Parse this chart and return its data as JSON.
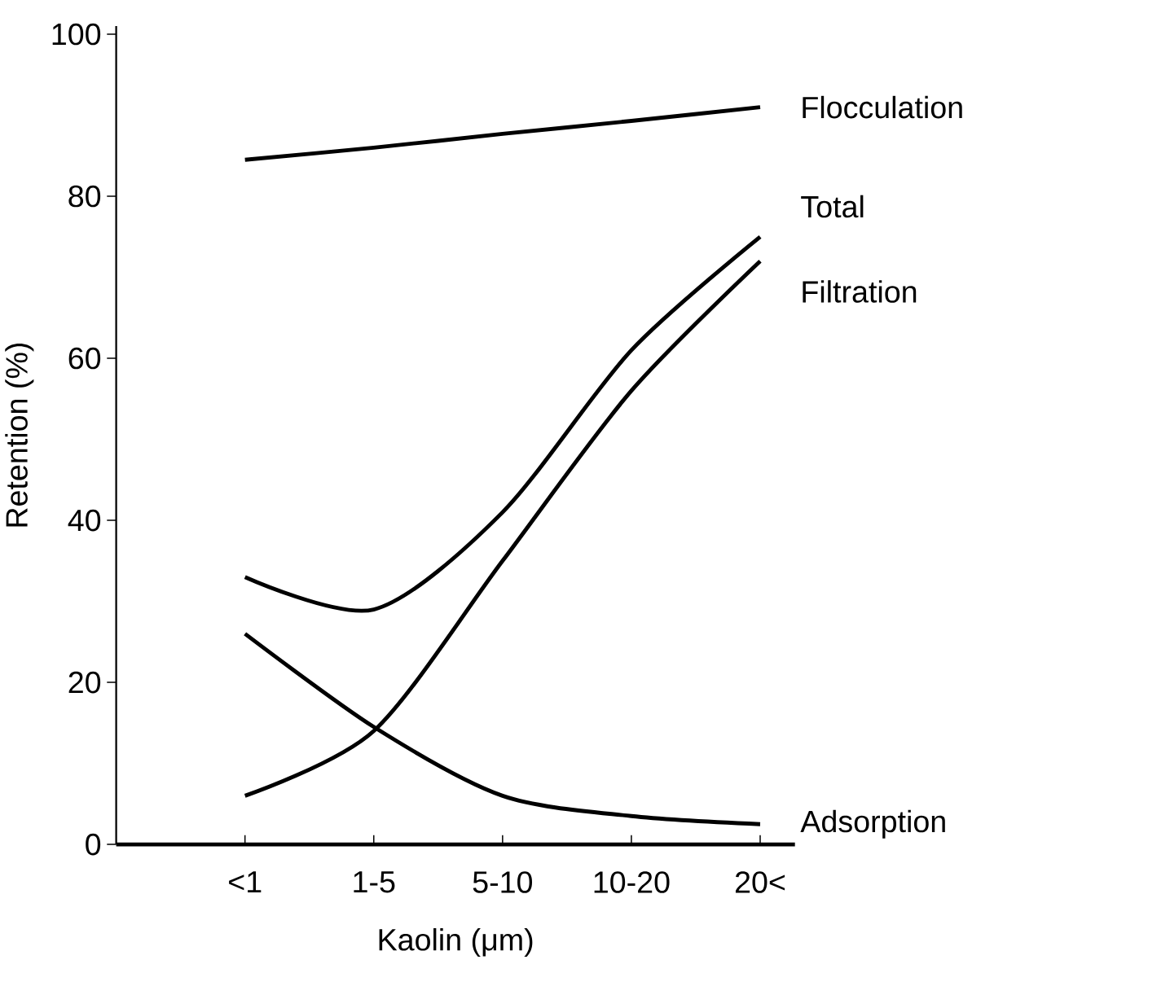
{
  "chart_data": {
    "type": "line",
    "xlabel": "Kaolin (μm)",
    "ylabel": "Retention (%)",
    "categories": [
      "<1",
      "1-5",
      "5-10",
      "10-20",
      "20<"
    ],
    "ylim": [
      0,
      101
    ],
    "yticks": [
      0,
      20,
      40,
      60,
      80,
      100
    ],
    "grid": false,
    "legend": false,
    "marker": "none",
    "line_style": "solid",
    "series": [
      {
        "name": "Flocculation",
        "color": "#000000",
        "values": [
          84.5,
          86,
          87.7,
          89.3,
          91
        ]
      },
      {
        "name": "Total",
        "color": "#000000",
        "values": [
          33,
          29,
          41,
          61,
          75
        ]
      },
      {
        "name": "Filtration",
        "color": "#000000",
        "values": [
          6,
          14,
          35,
          56,
          72
        ]
      },
      {
        "name": "Adsorption",
        "color": "#000000",
        "values": [
          26,
          14.5,
          6,
          3.5,
          2.5
        ]
      }
    ]
  }
}
